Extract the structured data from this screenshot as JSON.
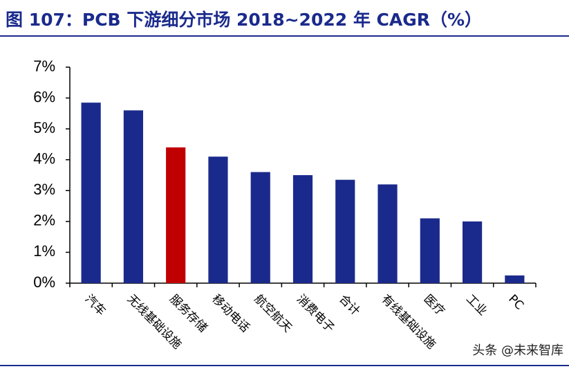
{
  "chart_data": {
    "type": "bar",
    "title": "图 107：PCB 下游细分市场 2018~2022 年 CAGR（%）",
    "categories": [
      "汽车",
      "无线基础设施",
      "服务存储",
      "移动电话",
      "航空航天",
      "消费电子",
      "合计",
      "有线基础设施",
      "医疗",
      "工业",
      "PC"
    ],
    "values": [
      5.85,
      5.6,
      4.4,
      4.1,
      3.6,
      3.5,
      3.35,
      3.2,
      2.1,
      2.0,
      0.25
    ],
    "colors": [
      "#1a2a8c",
      "#1a2a8c",
      "#c00000",
      "#1a2a8c",
      "#1a2a8c",
      "#1a2a8c",
      "#1a2a8c",
      "#1a2a8c",
      "#1a2a8c",
      "#1a2a8c",
      "#1a2a8c"
    ],
    "ylim": [
      0,
      7
    ],
    "yticks": [
      {
        "value": 0,
        "label": "0%"
      },
      {
        "value": 1,
        "label": "1%"
      },
      {
        "value": 2,
        "label": "2%"
      },
      {
        "value": 3,
        "label": "3%"
      },
      {
        "value": 4,
        "label": "4%"
      },
      {
        "value": 5,
        "label": "5%"
      },
      {
        "value": 6,
        "label": "6%"
      },
      {
        "value": 7,
        "label": "7%"
      }
    ],
    "grid": false,
    "watermark": "头条 @未来智库"
  }
}
